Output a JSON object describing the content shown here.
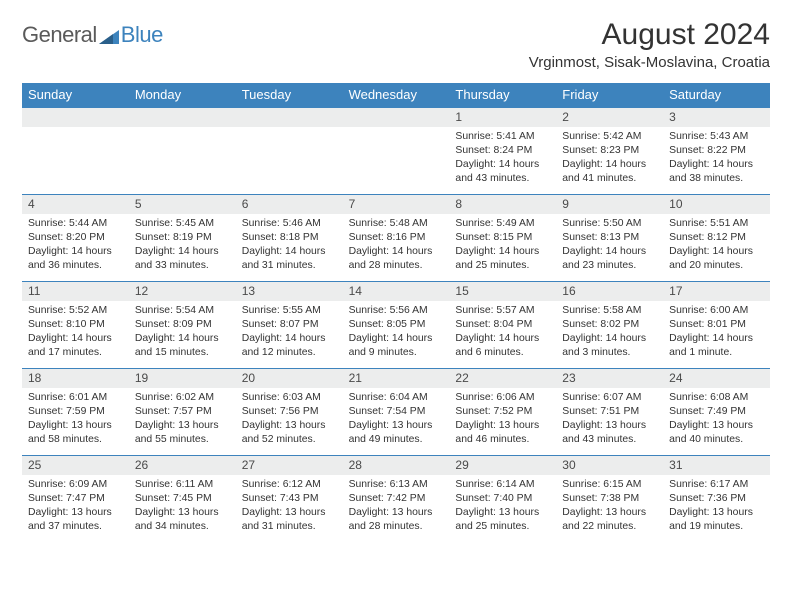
{
  "logo": {
    "word1": "General",
    "word2": "Blue"
  },
  "title": "August 2024",
  "location": "Vrginmost, Sisak-Moslavina, Croatia",
  "colors": {
    "header_bg": "#3d83bd",
    "header_text": "#ffffff",
    "daynum_bg": "#eceded",
    "text": "#333333",
    "logo_gray": "#5a5a5a",
    "logo_blue": "#3d83bd",
    "border": "#3d83bd"
  },
  "weekdays": [
    "Sunday",
    "Monday",
    "Tuesday",
    "Wednesday",
    "Thursday",
    "Friday",
    "Saturday"
  ],
  "weeks": [
    [
      {
        "day": "",
        "sunrise": "",
        "sunset": "",
        "daylight": ""
      },
      {
        "day": "",
        "sunrise": "",
        "sunset": "",
        "daylight": ""
      },
      {
        "day": "",
        "sunrise": "",
        "sunset": "",
        "daylight": ""
      },
      {
        "day": "",
        "sunrise": "",
        "sunset": "",
        "daylight": ""
      },
      {
        "day": "1",
        "sunrise": "Sunrise: 5:41 AM",
        "sunset": "Sunset: 8:24 PM",
        "daylight": "Daylight: 14 hours and 43 minutes."
      },
      {
        "day": "2",
        "sunrise": "Sunrise: 5:42 AM",
        "sunset": "Sunset: 8:23 PM",
        "daylight": "Daylight: 14 hours and 41 minutes."
      },
      {
        "day": "3",
        "sunrise": "Sunrise: 5:43 AM",
        "sunset": "Sunset: 8:22 PM",
        "daylight": "Daylight: 14 hours and 38 minutes."
      }
    ],
    [
      {
        "day": "4",
        "sunrise": "Sunrise: 5:44 AM",
        "sunset": "Sunset: 8:20 PM",
        "daylight": "Daylight: 14 hours and 36 minutes."
      },
      {
        "day": "5",
        "sunrise": "Sunrise: 5:45 AM",
        "sunset": "Sunset: 8:19 PM",
        "daylight": "Daylight: 14 hours and 33 minutes."
      },
      {
        "day": "6",
        "sunrise": "Sunrise: 5:46 AM",
        "sunset": "Sunset: 8:18 PM",
        "daylight": "Daylight: 14 hours and 31 minutes."
      },
      {
        "day": "7",
        "sunrise": "Sunrise: 5:48 AM",
        "sunset": "Sunset: 8:16 PM",
        "daylight": "Daylight: 14 hours and 28 minutes."
      },
      {
        "day": "8",
        "sunrise": "Sunrise: 5:49 AM",
        "sunset": "Sunset: 8:15 PM",
        "daylight": "Daylight: 14 hours and 25 minutes."
      },
      {
        "day": "9",
        "sunrise": "Sunrise: 5:50 AM",
        "sunset": "Sunset: 8:13 PM",
        "daylight": "Daylight: 14 hours and 23 minutes."
      },
      {
        "day": "10",
        "sunrise": "Sunrise: 5:51 AM",
        "sunset": "Sunset: 8:12 PM",
        "daylight": "Daylight: 14 hours and 20 minutes."
      }
    ],
    [
      {
        "day": "11",
        "sunrise": "Sunrise: 5:52 AM",
        "sunset": "Sunset: 8:10 PM",
        "daylight": "Daylight: 14 hours and 17 minutes."
      },
      {
        "day": "12",
        "sunrise": "Sunrise: 5:54 AM",
        "sunset": "Sunset: 8:09 PM",
        "daylight": "Daylight: 14 hours and 15 minutes."
      },
      {
        "day": "13",
        "sunrise": "Sunrise: 5:55 AM",
        "sunset": "Sunset: 8:07 PM",
        "daylight": "Daylight: 14 hours and 12 minutes."
      },
      {
        "day": "14",
        "sunrise": "Sunrise: 5:56 AM",
        "sunset": "Sunset: 8:05 PM",
        "daylight": "Daylight: 14 hours and 9 minutes."
      },
      {
        "day": "15",
        "sunrise": "Sunrise: 5:57 AM",
        "sunset": "Sunset: 8:04 PM",
        "daylight": "Daylight: 14 hours and 6 minutes."
      },
      {
        "day": "16",
        "sunrise": "Sunrise: 5:58 AM",
        "sunset": "Sunset: 8:02 PM",
        "daylight": "Daylight: 14 hours and 3 minutes."
      },
      {
        "day": "17",
        "sunrise": "Sunrise: 6:00 AM",
        "sunset": "Sunset: 8:01 PM",
        "daylight": "Daylight: 14 hours and 1 minute."
      }
    ],
    [
      {
        "day": "18",
        "sunrise": "Sunrise: 6:01 AM",
        "sunset": "Sunset: 7:59 PM",
        "daylight": "Daylight: 13 hours and 58 minutes."
      },
      {
        "day": "19",
        "sunrise": "Sunrise: 6:02 AM",
        "sunset": "Sunset: 7:57 PM",
        "daylight": "Daylight: 13 hours and 55 minutes."
      },
      {
        "day": "20",
        "sunrise": "Sunrise: 6:03 AM",
        "sunset": "Sunset: 7:56 PM",
        "daylight": "Daylight: 13 hours and 52 minutes."
      },
      {
        "day": "21",
        "sunrise": "Sunrise: 6:04 AM",
        "sunset": "Sunset: 7:54 PM",
        "daylight": "Daylight: 13 hours and 49 minutes."
      },
      {
        "day": "22",
        "sunrise": "Sunrise: 6:06 AM",
        "sunset": "Sunset: 7:52 PM",
        "daylight": "Daylight: 13 hours and 46 minutes."
      },
      {
        "day": "23",
        "sunrise": "Sunrise: 6:07 AM",
        "sunset": "Sunset: 7:51 PM",
        "daylight": "Daylight: 13 hours and 43 minutes."
      },
      {
        "day": "24",
        "sunrise": "Sunrise: 6:08 AM",
        "sunset": "Sunset: 7:49 PM",
        "daylight": "Daylight: 13 hours and 40 minutes."
      }
    ],
    [
      {
        "day": "25",
        "sunrise": "Sunrise: 6:09 AM",
        "sunset": "Sunset: 7:47 PM",
        "daylight": "Daylight: 13 hours and 37 minutes."
      },
      {
        "day": "26",
        "sunrise": "Sunrise: 6:11 AM",
        "sunset": "Sunset: 7:45 PM",
        "daylight": "Daylight: 13 hours and 34 minutes."
      },
      {
        "day": "27",
        "sunrise": "Sunrise: 6:12 AM",
        "sunset": "Sunset: 7:43 PM",
        "daylight": "Daylight: 13 hours and 31 minutes."
      },
      {
        "day": "28",
        "sunrise": "Sunrise: 6:13 AM",
        "sunset": "Sunset: 7:42 PM",
        "daylight": "Daylight: 13 hours and 28 minutes."
      },
      {
        "day": "29",
        "sunrise": "Sunrise: 6:14 AM",
        "sunset": "Sunset: 7:40 PM",
        "daylight": "Daylight: 13 hours and 25 minutes."
      },
      {
        "day": "30",
        "sunrise": "Sunrise: 6:15 AM",
        "sunset": "Sunset: 7:38 PM",
        "daylight": "Daylight: 13 hours and 22 minutes."
      },
      {
        "day": "31",
        "sunrise": "Sunrise: 6:17 AM",
        "sunset": "Sunset: 7:36 PM",
        "daylight": "Daylight: 13 hours and 19 minutes."
      }
    ]
  ]
}
